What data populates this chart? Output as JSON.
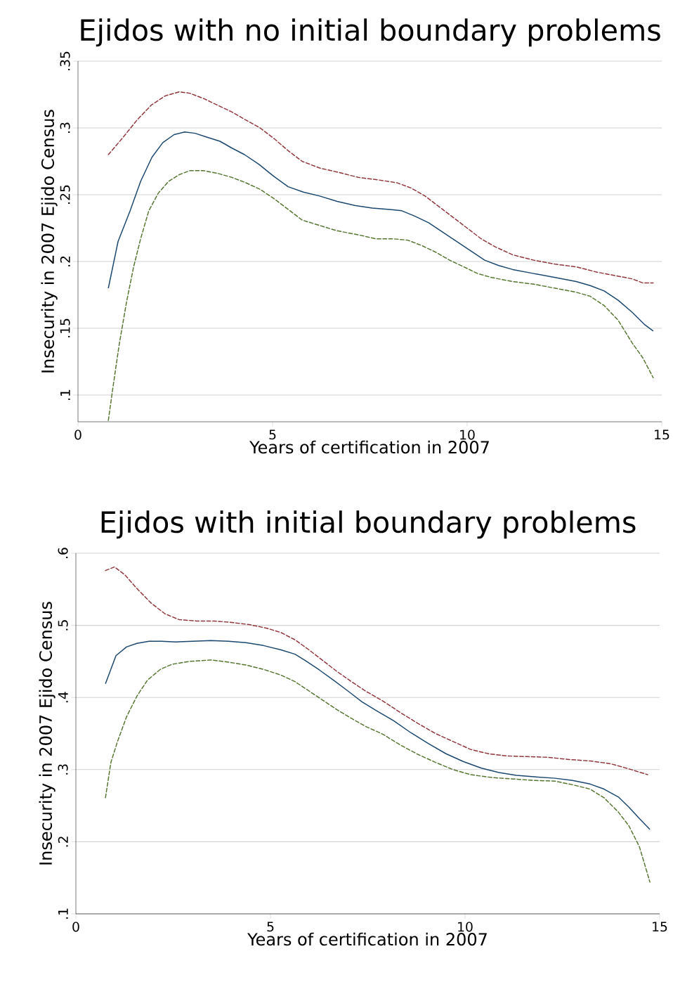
{
  "chart_data": [
    {
      "type": "line",
      "title": "Ejidos with no initial boundary problems",
      "xlabel": "Years of certification in 2007",
      "ylabel": "Insecurity in 2007 Ejido Census",
      "xlim": [
        0,
        15
      ],
      "ylim": [
        0.08,
        0.35
      ],
      "xticks": [
        0,
        5,
        10,
        15
      ],
      "yticks": [
        {
          "value": 0.1,
          "label": ".1"
        },
        {
          "value": 0.15,
          "label": ".15"
        },
        {
          "value": 0.2,
          "label": ".2"
        },
        {
          "value": 0.25,
          "label": ".25"
        },
        {
          "value": 0.3,
          "label": ".3"
        },
        {
          "value": 0.35,
          "label": ".35"
        }
      ],
      "grid": "y",
      "series": [
        {
          "color": "#1a476f",
          "line_style": "solid",
          "x": [
            0.78,
            1.03,
            1.34,
            1.61,
            1.9,
            2.18,
            2.47,
            2.74,
            3.01,
            3.32,
            3.65,
            3.95,
            4.28,
            4.64,
            5.02,
            5.4,
            5.79,
            6.21,
            6.66,
            7.11,
            7.56,
            8.01,
            8.32,
            8.65,
            9.01,
            9.37,
            9.73,
            10.09,
            10.45,
            10.81,
            11.17,
            11.71,
            12.26,
            12.8,
            13.16,
            13.52,
            13.88,
            14.24,
            14.55,
            14.78
          ],
          "values": [
            0.18,
            0.215,
            0.238,
            0.26,
            0.278,
            0.289,
            0.295,
            0.297,
            0.296,
            0.293,
            0.29,
            0.285,
            0.28,
            0.273,
            0.264,
            0.256,
            0.252,
            0.249,
            0.245,
            0.242,
            0.24,
            0.239,
            0.238,
            0.234,
            0.229,
            0.222,
            0.215,
            0.208,
            0.201,
            0.197,
            0.194,
            0.191,
            0.188,
            0.185,
            0.182,
            0.178,
            0.171,
            0.162,
            0.153,
            0.148
          ]
        },
        {
          "color": "#90353b",
          "line_style": "dashed",
          "x": [
            0.78,
            1.16,
            1.52,
            1.88,
            2.24,
            2.6,
            2.87,
            3.23,
            3.59,
            3.95,
            4.31,
            4.68,
            5.04,
            5.4,
            5.76,
            6.21,
            6.66,
            7.2,
            7.74,
            8.19,
            8.56,
            8.92,
            9.28,
            9.64,
            10.0,
            10.36,
            10.72,
            11.17,
            11.71,
            12.26,
            12.8,
            13.34,
            13.88,
            14.24,
            14.51,
            14.78
          ],
          "values": [
            0.28,
            0.293,
            0.306,
            0.317,
            0.324,
            0.327,
            0.326,
            0.322,
            0.317,
            0.312,
            0.306,
            0.3,
            0.292,
            0.283,
            0.275,
            0.27,
            0.267,
            0.263,
            0.261,
            0.259,
            0.255,
            0.249,
            0.241,
            0.233,
            0.225,
            0.217,
            0.211,
            0.205,
            0.201,
            0.198,
            0.196,
            0.192,
            0.189,
            0.187,
            0.184,
            0.184
          ]
        },
        {
          "color": "#55752f",
          "line_style": "dashed",
          "x": [
            0.78,
            0.88,
            1.06,
            1.25,
            1.43,
            1.61,
            1.82,
            2.06,
            2.33,
            2.6,
            2.87,
            3.23,
            3.59,
            3.95,
            4.31,
            4.68,
            5.04,
            5.4,
            5.76,
            6.21,
            6.66,
            7.2,
            7.65,
            8.1,
            8.47,
            8.83,
            9.19,
            9.55,
            9.91,
            10.27,
            10.63,
            11.17,
            11.71,
            12.26,
            12.8,
            13.16,
            13.52,
            13.88,
            14.24,
            14.51,
            14.78
          ],
          "values": [
            0.081,
            0.102,
            0.138,
            0.17,
            0.196,
            0.217,
            0.238,
            0.251,
            0.26,
            0.265,
            0.268,
            0.268,
            0.266,
            0.263,
            0.259,
            0.254,
            0.247,
            0.239,
            0.231,
            0.227,
            0.223,
            0.22,
            0.217,
            0.217,
            0.216,
            0.212,
            0.207,
            0.201,
            0.196,
            0.191,
            0.188,
            0.185,
            0.183,
            0.18,
            0.177,
            0.174,
            0.167,
            0.156,
            0.139,
            0.128,
            0.113
          ]
        }
      ]
    },
    {
      "type": "line",
      "title": "Ejidos with initial boundary problems",
      "xlabel": "Years of certification in 2007",
      "ylabel": "Insecurity in 2007 Ejido Census",
      "xlim": [
        0,
        15
      ],
      "ylim": [
        0.1,
        0.6
      ],
      "xticks": [
        0,
        5,
        10,
        15
      ],
      "yticks": [
        {
          "value": 0.1,
          "label": ".1"
        },
        {
          "value": 0.2,
          "label": ".2"
        },
        {
          "value": 0.3,
          "label": ".3"
        },
        {
          "value": 0.4,
          "label": ".4"
        },
        {
          "value": 0.5,
          "label": ".5"
        },
        {
          "value": 0.6,
          "label": ".6"
        }
      ],
      "grid": "y",
      "series": [
        {
          "color": "#1a476f",
          "line_style": "solid",
          "x": [
            0.76,
            1.03,
            1.3,
            1.57,
            1.88,
            2.2,
            2.56,
            3.01,
            3.47,
            3.92,
            4.37,
            4.82,
            5.27,
            5.63,
            5.9,
            6.26,
            6.62,
            6.99,
            7.35,
            7.71,
            8.16,
            8.61,
            9.06,
            9.51,
            9.96,
            10.42,
            10.87,
            11.32,
            11.77,
            12.31,
            12.76,
            13.21,
            13.57,
            13.94,
            14.21,
            14.48,
            14.75
          ],
          "values": [
            0.419,
            0.458,
            0.47,
            0.475,
            0.478,
            0.478,
            0.477,
            0.478,
            0.479,
            0.478,
            0.476,
            0.472,
            0.466,
            0.46,
            0.451,
            0.438,
            0.424,
            0.409,
            0.394,
            0.382,
            0.368,
            0.351,
            0.336,
            0.322,
            0.311,
            0.302,
            0.296,
            0.292,
            0.29,
            0.288,
            0.285,
            0.28,
            0.273,
            0.262,
            0.248,
            0.232,
            0.217
          ]
        },
        {
          "color": "#90353b",
          "line_style": "dashed",
          "x": [
            0.76,
            0.99,
            1.26,
            1.57,
            1.93,
            2.29,
            2.65,
            3.1,
            3.56,
            4.01,
            4.46,
            4.91,
            5.27,
            5.63,
            5.99,
            6.35,
            6.71,
            7.08,
            7.44,
            7.89,
            8.34,
            8.79,
            9.24,
            9.69,
            10.14,
            10.6,
            11.05,
            11.59,
            12.13,
            12.67,
            13.21,
            13.75,
            14.21,
            14.69
          ],
          "values": [
            0.576,
            0.581,
            0.57,
            0.551,
            0.531,
            0.516,
            0.508,
            0.506,
            0.506,
            0.504,
            0.501,
            0.496,
            0.49,
            0.48,
            0.466,
            0.451,
            0.436,
            0.422,
            0.409,
            0.395,
            0.379,
            0.364,
            0.35,
            0.339,
            0.328,
            0.322,
            0.319,
            0.318,
            0.317,
            0.314,
            0.312,
            0.308,
            0.301,
            0.293
          ]
        },
        {
          "color": "#55752f",
          "line_style": "dashed",
          "x": [
            0.76,
            0.9,
            1.07,
            1.3,
            1.57,
            1.84,
            2.17,
            2.47,
            2.92,
            3.47,
            3.92,
            4.37,
            4.82,
            5.27,
            5.63,
            5.99,
            6.35,
            6.71,
            7.08,
            7.44,
            7.89,
            8.34,
            8.79,
            9.24,
            9.69,
            10.14,
            10.69,
            11.23,
            11.77,
            12.31,
            12.76,
            13.21,
            13.57,
            13.94,
            14.21,
            14.48,
            14.75
          ],
          "values": [
            0.261,
            0.31,
            0.339,
            0.373,
            0.402,
            0.424,
            0.439,
            0.446,
            0.45,
            0.452,
            0.449,
            0.445,
            0.439,
            0.431,
            0.422,
            0.409,
            0.396,
            0.383,
            0.371,
            0.36,
            0.349,
            0.334,
            0.321,
            0.31,
            0.3,
            0.293,
            0.289,
            0.287,
            0.285,
            0.284,
            0.279,
            0.273,
            0.261,
            0.241,
            0.222,
            0.193,
            0.144
          ]
        }
      ]
    }
  ]
}
